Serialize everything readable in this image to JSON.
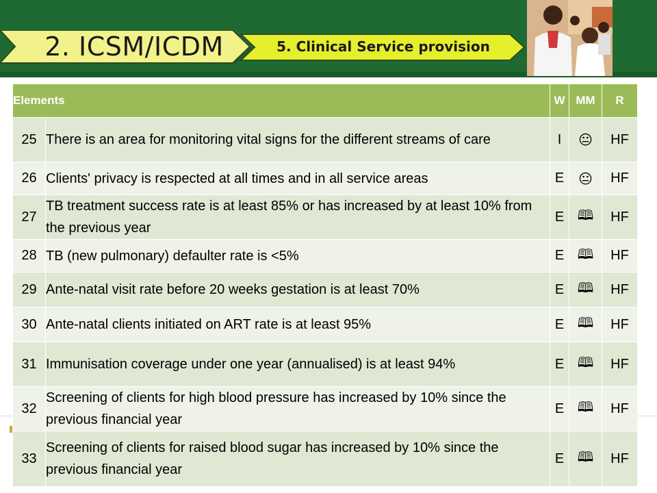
{
  "header": {
    "section_title": "2. ICSM/ICDM",
    "subsection_title": "5. Clinical Service provision",
    "photo_icon": "healthcare-worker-with-children-photo"
  },
  "table": {
    "columns": {
      "elements": "Elements",
      "w": "W",
      "mm": "MM",
      "r": "R"
    },
    "rows": [
      {
        "num": "25",
        "element": "There is an area  for monitoring vital signs for the different streams of care",
        "w": "I",
        "mm": "😐",
        "r": "HF"
      },
      {
        "num": "26",
        "element": "Clients' privacy is respected at all times and in all service areas",
        "w": "E",
        "mm": "😐",
        "r": "HF"
      },
      {
        "num": "27",
        "element": "TB treatment success rate is at least 85% or has increased by at least 10% from the previous year",
        "w": "E",
        "mm": "🕮",
        "r": "HF"
      },
      {
        "num": "28",
        "element": "TB (new pulmonary) defaulter rate is <5%",
        "w": "E",
        "mm": "🕮",
        "r": "HF"
      },
      {
        "num": "29",
        "element": "Ante-natal visit rate before 20 weeks gestation is at least 70%",
        "w": "E",
        "mm": "🕮",
        "r": "HF"
      },
      {
        "num": "30",
        "element": "Ante-natal clients initiated on ART rate is at least 95%",
        "w": "E",
        "mm": "🕮",
        "r": "HF"
      },
      {
        "num": "31",
        "element": "Immunisation coverage under one year (annualised) is at least 94%",
        "w": "E",
        "mm": "🕮",
        "r": "HF"
      },
      {
        "num": "32",
        "element": "Screening of clients for high blood pressure has increased by 10% since the previous financial year",
        "w": "E",
        "mm": "🕮",
        "r": "HF"
      },
      {
        "num": "33",
        "element": "Screening of clients for raised blood sugar has increased by 10% since the previous financial year",
        "w": "E",
        "mm": "🕮",
        "r": "HF"
      }
    ]
  },
  "colors": {
    "banner_green": "#1f6a32",
    "arrow_yellow": "#f3f28a",
    "arrow_bright_yellow": "#e6ef2c",
    "header_green": "#9bbb59"
  }
}
